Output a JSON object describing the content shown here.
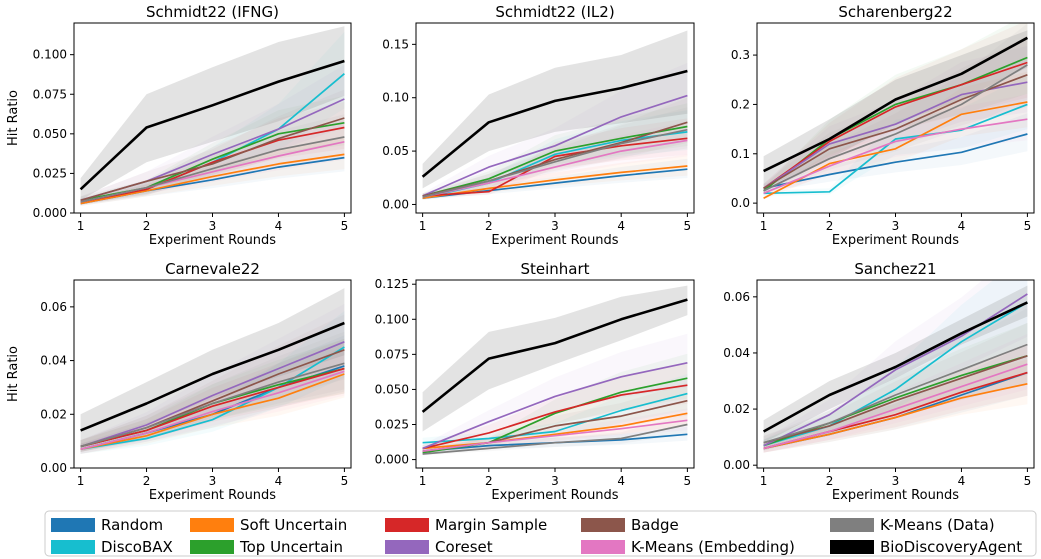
{
  "legend": {
    "entries": [
      {
        "label": "Random",
        "color": "#1f77b4"
      },
      {
        "label": "DiscoBAX",
        "color": "#17becf"
      },
      {
        "label": "Soft Uncertain",
        "color": "#ff7f0e"
      },
      {
        "label": "Top Uncertain",
        "color": "#2ca02c"
      },
      {
        "label": "Margin Sample",
        "color": "#d62728"
      },
      {
        "label": "Coreset",
        "color": "#9467bd"
      },
      {
        "label": "Badge",
        "color": "#8c564b"
      },
      {
        "label": "K-Means (Embedding)",
        "color": "#e377c2"
      },
      {
        "label": "K-Means (Data)",
        "color": "#7f7f7f"
      },
      {
        "label": "BioDiscoveryAgent",
        "color": "#000000"
      }
    ]
  },
  "chart_data": [
    {
      "type": "line",
      "title": "Schmidt22 (IFNG)",
      "xlabel": "Experiment Rounds",
      "ylabel": "Hit Ratio",
      "x": [
        1,
        2,
        3,
        4,
        5
      ],
      "xlim": [
        0.9,
        5.1
      ],
      "ylim": [
        0,
        0.12
      ],
      "yticks": [
        "0.000",
        "0.025",
        "0.050",
        "0.075",
        "0.100"
      ],
      "ytick_values": [
        0,
        0.025,
        0.05,
        0.075,
        0.1
      ],
      "series": [
        {
          "name": "Random",
          "values": [
            0.006,
            0.014,
            0.021,
            0.029,
            0.035
          ]
        },
        {
          "name": "DiscoBAX",
          "values": [
            0.007,
            0.015,
            0.032,
            0.053,
            0.088
          ]
        },
        {
          "name": "Soft Uncertain",
          "values": [
            0.006,
            0.014,
            0.023,
            0.031,
            0.037
          ]
        },
        {
          "name": "Top Uncertain",
          "values": [
            0.008,
            0.016,
            0.034,
            0.05,
            0.057
          ]
        },
        {
          "name": "Margin Sample",
          "values": [
            0.007,
            0.015,
            0.032,
            0.046,
            0.054
          ]
        },
        {
          "name": "Coreset",
          "values": [
            0.008,
            0.02,
            0.037,
            0.053,
            0.072
          ]
        },
        {
          "name": "Badge",
          "values": [
            0.008,
            0.02,
            0.031,
            0.047,
            0.06
          ]
        },
        {
          "name": "K-Means (Embedding)",
          "values": [
            0.007,
            0.016,
            0.026,
            0.036,
            0.045
          ]
        },
        {
          "name": "K-Means (Data)",
          "values": [
            0.007,
            0.016,
            0.028,
            0.04,
            0.048
          ]
        },
        {
          "name": "BioDiscoveryAgent",
          "values": [
            0.015,
            0.054,
            0.068,
            0.083,
            0.096
          ]
        }
      ],
      "agent_band": {
        "lower": [
          0.008,
          0.032,
          0.045,
          0.058,
          0.074
        ],
        "upper": [
          0.022,
          0.075,
          0.092,
          0.108,
          0.118
        ]
      }
    },
    {
      "type": "line",
      "title": "Schmidt22 (IL2)",
      "xlabel": "Experiment Rounds",
      "ylabel": "",
      "x": [
        1,
        2,
        3,
        4,
        5
      ],
      "xlim": [
        0.9,
        5.1
      ],
      "ylim": [
        -0.008,
        0.17
      ],
      "yticks": [
        "0.00",
        "0.05",
        "0.10",
        "0.15"
      ],
      "ytick_values": [
        0,
        0.05,
        0.1,
        0.15
      ],
      "series": [
        {
          "name": "Random",
          "values": [
            0.006,
            0.013,
            0.02,
            0.027,
            0.033
          ]
        },
        {
          "name": "DiscoBAX",
          "values": [
            0.006,
            0.02,
            0.047,
            0.06,
            0.068
          ]
        },
        {
          "name": "Soft Uncertain",
          "values": [
            0.006,
            0.015,
            0.023,
            0.03,
            0.036
          ]
        },
        {
          "name": "Top Uncertain",
          "values": [
            0.008,
            0.024,
            0.05,
            0.062,
            0.073
          ]
        },
        {
          "name": "Margin Sample",
          "values": [
            0.008,
            0.012,
            0.045,
            0.055,
            0.062
          ]
        },
        {
          "name": "Coreset",
          "values": [
            0.008,
            0.035,
            0.055,
            0.082,
            0.102
          ]
        },
        {
          "name": "Badge",
          "values": [
            0.008,
            0.022,
            0.042,
            0.058,
            0.077
          ]
        },
        {
          "name": "K-Means (Embedding)",
          "values": [
            0.007,
            0.02,
            0.035,
            0.05,
            0.06
          ]
        },
        {
          "name": "K-Means (Data)",
          "values": [
            0.007,
            0.022,
            0.04,
            0.057,
            0.07
          ]
        },
        {
          "name": "BioDiscoveryAgent",
          "values": [
            0.026,
            0.077,
            0.097,
            0.109,
            0.125
          ]
        }
      ],
      "agent_band": {
        "lower": [
          0.015,
          0.05,
          0.068,
          0.076,
          0.085
        ],
        "upper": [
          0.038,
          0.103,
          0.128,
          0.14,
          0.163
        ]
      }
    },
    {
      "type": "line",
      "title": "Scharenberg22",
      "xlabel": "Experiment Rounds",
      "ylabel": "",
      "x": [
        1,
        2,
        3,
        4,
        5
      ],
      "xlim": [
        0.9,
        5.1
      ],
      "ylim": [
        -0.02,
        0.365
      ],
      "yticks": [
        "0.0",
        "0.1",
        "0.2",
        "0.3"
      ],
      "ytick_values": [
        0,
        0.1,
        0.2,
        0.3
      ],
      "series": [
        {
          "name": "Random",
          "values": [
            0.03,
            0.058,
            0.083,
            0.103,
            0.14
          ]
        },
        {
          "name": "DiscoBAX",
          "values": [
            0.02,
            0.023,
            0.13,
            0.148,
            0.2
          ]
        },
        {
          "name": "Soft Uncertain",
          "values": [
            0.01,
            0.08,
            0.11,
            0.18,
            0.205
          ]
        },
        {
          "name": "Top Uncertain",
          "values": [
            0.025,
            0.13,
            0.2,
            0.24,
            0.295
          ]
        },
        {
          "name": "Margin Sample",
          "values": [
            0.03,
            0.125,
            0.195,
            0.24,
            0.285
          ]
        },
        {
          "name": "Coreset",
          "values": [
            0.03,
            0.12,
            0.16,
            0.22,
            0.245
          ]
        },
        {
          "name": "Badge",
          "values": [
            0.03,
            0.11,
            0.15,
            0.21,
            0.26
          ]
        },
        {
          "name": "K-Means (Embedding)",
          "values": [
            0.02,
            0.075,
            0.125,
            0.15,
            0.17
          ]
        },
        {
          "name": "K-Means (Data)",
          "values": [
            0.025,
            0.09,
            0.14,
            0.2,
            0.28
          ]
        },
        {
          "name": "BioDiscoveryAgent",
          "values": [
            0.065,
            0.13,
            0.21,
            0.262,
            0.335
          ]
        }
      ],
      "agent_band": {
        "lower": [
          0.03,
          0.09,
          0.16,
          0.21,
          0.275
        ],
        "upper": [
          0.095,
          0.17,
          0.25,
          0.3,
          0.35
        ]
      }
    },
    {
      "type": "line",
      "title": "Carnevale22",
      "xlabel": "Experiment Rounds",
      "ylabel": "Hit Ratio",
      "x": [
        1,
        2,
        3,
        4,
        5
      ],
      "xlim": [
        0.9,
        5.1
      ],
      "ylim": [
        0,
        0.07
      ],
      "yticks": [
        "0.00",
        "0.02",
        "0.04",
        "0.06"
      ],
      "ytick_values": [
        0,
        0.02,
        0.04,
        0.06
      ],
      "series": [
        {
          "name": "Random",
          "values": [
            0.007,
            0.013,
            0.02,
            0.03,
            0.038
          ]
        },
        {
          "name": "DiscoBAX",
          "values": [
            0.007,
            0.011,
            0.018,
            0.03,
            0.045
          ]
        },
        {
          "name": "Soft Uncertain",
          "values": [
            0.007,
            0.012,
            0.02,
            0.026,
            0.035
          ]
        },
        {
          "name": "Top Uncertain",
          "values": [
            0.008,
            0.014,
            0.024,
            0.031,
            0.037
          ]
        },
        {
          "name": "Margin Sample",
          "values": [
            0.008,
            0.014,
            0.023,
            0.03,
            0.037
          ]
        },
        {
          "name": "Coreset",
          "values": [
            0.008,
            0.016,
            0.027,
            0.037,
            0.047
          ]
        },
        {
          "name": "Badge",
          "values": [
            0.008,
            0.015,
            0.025,
            0.035,
            0.044
          ]
        },
        {
          "name": "K-Means (Embedding)",
          "values": [
            0.007,
            0.013,
            0.021,
            0.028,
            0.036
          ]
        },
        {
          "name": "K-Means (Data)",
          "values": [
            0.008,
            0.015,
            0.024,
            0.032,
            0.039
          ]
        },
        {
          "name": "BioDiscoveryAgent",
          "values": [
            0.014,
            0.024,
            0.035,
            0.044,
            0.054
          ]
        }
      ],
      "agent_band": {
        "lower": [
          0.008,
          0.016,
          0.026,
          0.034,
          0.042
        ],
        "upper": [
          0.02,
          0.032,
          0.044,
          0.054,
          0.067
        ]
      }
    },
    {
      "type": "line",
      "title": "Steinhart",
      "xlabel": "Experiment Rounds",
      "ylabel": "",
      "x": [
        1,
        2,
        3,
        4,
        5
      ],
      "xlim": [
        0.9,
        5.1
      ],
      "ylim": [
        -0.006,
        0.128
      ],
      "yticks": [
        "0.000",
        "0.025",
        "0.050",
        "0.075",
        "0.100",
        "0.125"
      ],
      "ytick_values": [
        0,
        0.025,
        0.05,
        0.075,
        0.1,
        0.125
      ],
      "series": [
        {
          "name": "Random",
          "values": [
            0.006,
            0.01,
            0.012,
            0.014,
            0.018
          ]
        },
        {
          "name": "DiscoBAX",
          "values": [
            0.012,
            0.015,
            0.02,
            0.035,
            0.047
          ]
        },
        {
          "name": "Soft Uncertain",
          "values": [
            0.008,
            0.012,
            0.018,
            0.024,
            0.033
          ]
        },
        {
          "name": "Top Uncertain",
          "values": [
            0.005,
            0.012,
            0.033,
            0.048,
            0.058
          ]
        },
        {
          "name": "Margin Sample",
          "values": [
            0.008,
            0.019,
            0.034,
            0.046,
            0.053
          ]
        },
        {
          "name": "Coreset",
          "values": [
            0.008,
            0.027,
            0.045,
            0.059,
            0.069
          ]
        },
        {
          "name": "Badge",
          "values": [
            0.006,
            0.012,
            0.024,
            0.031,
            0.042
          ]
        },
        {
          "name": "K-Means (Embedding)",
          "values": [
            0.006,
            0.012,
            0.017,
            0.022,
            0.028
          ]
        },
        {
          "name": "K-Means (Data)",
          "values": [
            0.004,
            0.008,
            0.012,
            0.015,
            0.025
          ]
        },
        {
          "name": "BioDiscoveryAgent",
          "values": [
            0.034,
            0.072,
            0.083,
            0.1,
            0.114
          ]
        }
      ],
      "agent_band": {
        "lower": [
          0.02,
          0.05,
          0.068,
          0.085,
          0.103
        ],
        "upper": [
          0.048,
          0.091,
          0.101,
          0.116,
          0.124
        ]
      }
    },
    {
      "type": "line",
      "title": "Sanchez21",
      "xlabel": "Experiment Rounds",
      "ylabel": "",
      "x": [
        1,
        2,
        3,
        4,
        5
      ],
      "xlim": [
        0.9,
        5.1
      ],
      "ylim": [
        -0.001,
        0.066
      ],
      "yticks": [
        "0.00",
        "0.02",
        "0.04",
        "0.06"
      ],
      "ytick_values": [
        0,
        0.02,
        0.04,
        0.06
      ],
      "series": [
        {
          "name": "Random",
          "values": [
            0.006,
            0.011,
            0.017,
            0.025,
            0.033
          ]
        },
        {
          "name": "DiscoBAX",
          "values": [
            0.007,
            0.014,
            0.027,
            0.044,
            0.058
          ]
        },
        {
          "name": "Soft Uncertain",
          "values": [
            0.006,
            0.011,
            0.017,
            0.024,
            0.029
          ]
        },
        {
          "name": "Top Uncertain",
          "values": [
            0.007,
            0.015,
            0.024,
            0.032,
            0.039
          ]
        },
        {
          "name": "Margin Sample",
          "values": [
            0.006,
            0.012,
            0.018,
            0.026,
            0.033
          ]
        },
        {
          "name": "Coreset",
          "values": [
            0.007,
            0.018,
            0.034,
            0.046,
            0.061
          ]
        },
        {
          "name": "Badge",
          "values": [
            0.008,
            0.014,
            0.023,
            0.031,
            0.039
          ]
        },
        {
          "name": "K-Means (Embedding)",
          "values": [
            0.006,
            0.012,
            0.02,
            0.028,
            0.036
          ]
        },
        {
          "name": "K-Means (Data)",
          "values": [
            0.008,
            0.015,
            0.025,
            0.034,
            0.043
          ]
        },
        {
          "name": "BioDiscoveryAgent",
          "values": [
            0.012,
            0.025,
            0.035,
            0.047,
            0.058
          ]
        }
      ],
      "agent_band": {
        "lower": [
          0.008,
          0.02,
          0.031,
          0.043,
          0.053
        ],
        "upper": [
          0.016,
          0.03,
          0.04,
          0.052,
          0.064
        ]
      }
    }
  ]
}
